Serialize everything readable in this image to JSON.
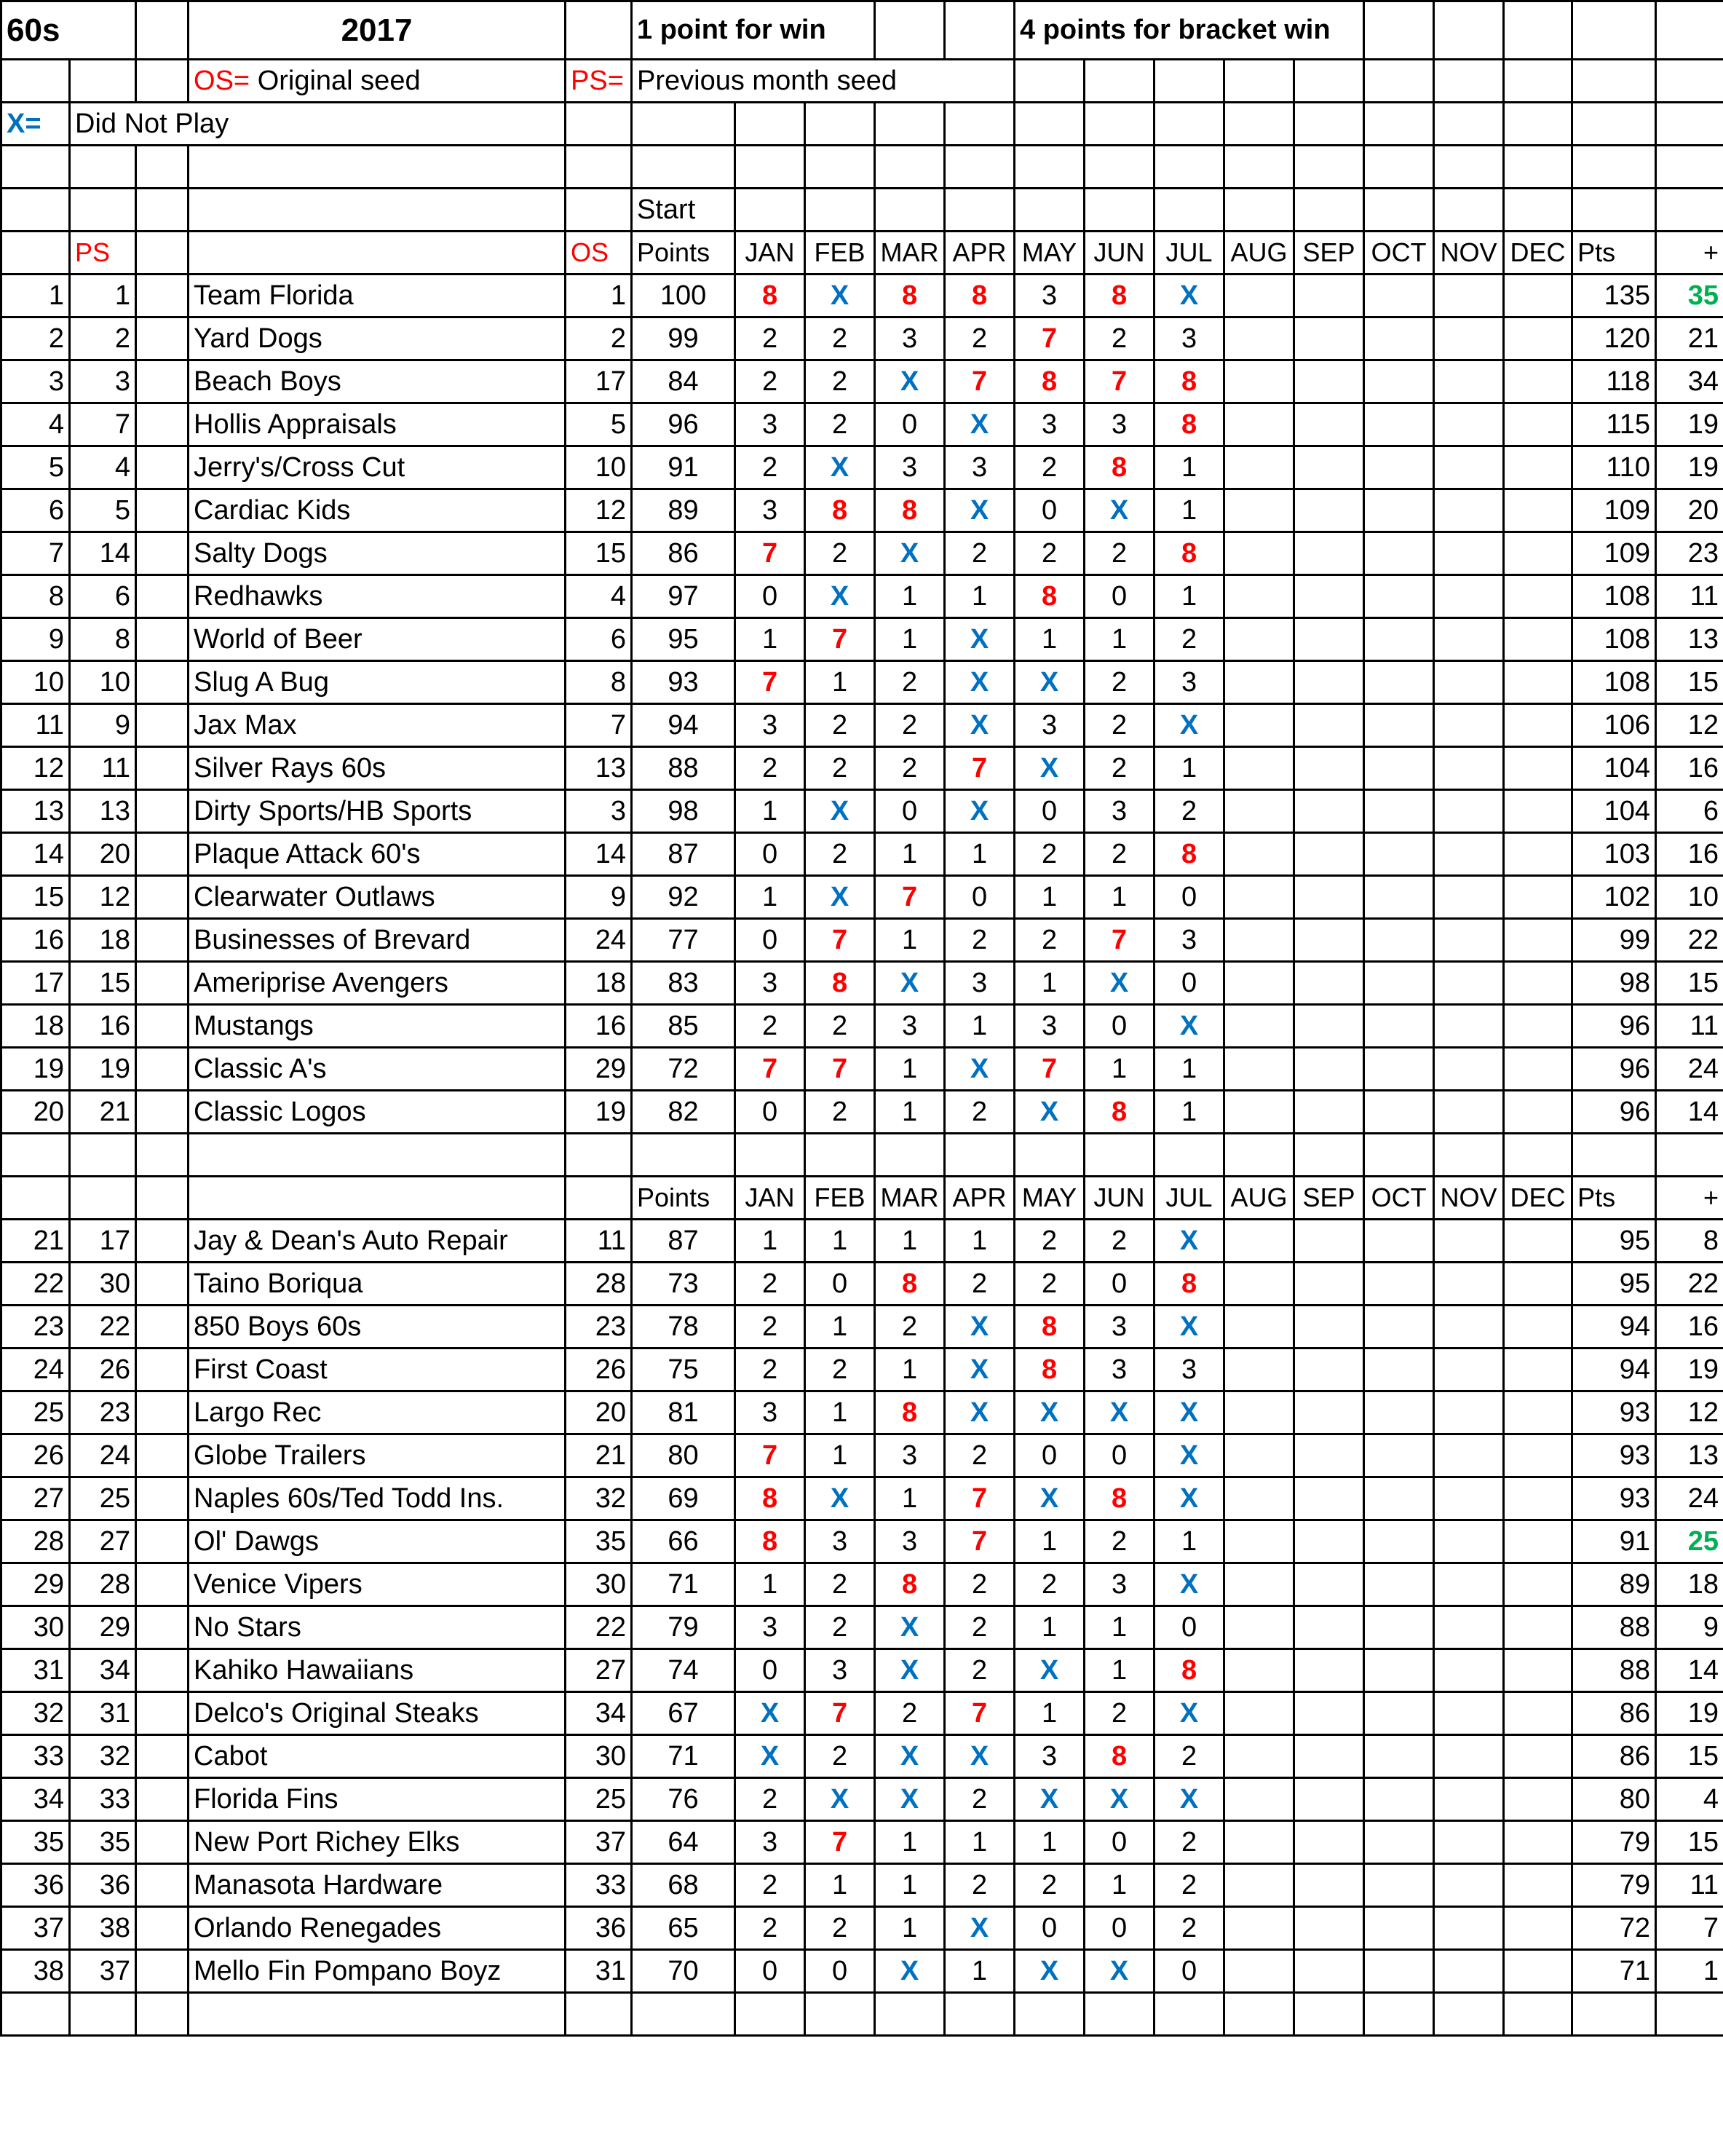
{
  "sheet": {
    "division": "60s",
    "year": "2017",
    "rule_win": "1 point for win",
    "rule_bracket": "4 points for bracket win",
    "os_key": "OS=",
    "os_desc": "Original seed",
    "ps_key": "PS=",
    "ps_desc": "Previous month seed",
    "x_key": "X=",
    "x_desc": "Did Not Play"
  },
  "colors": {
    "win": "#ff0000",
    "did_not_play": "#0070c0",
    "highlight": "#00b050",
    "legend_key_red": "#ff0000"
  },
  "header": {
    "start": "Start",
    "ps": "PS",
    "os": "OS",
    "points": "Points",
    "months": [
      "JAN",
      "FEB",
      "MAR",
      "APR",
      "MAY",
      "JUN",
      "JUL",
      "AUG",
      "SEP",
      "OCT",
      "NOV",
      "DEC"
    ],
    "pts": "Pts",
    "plus": "+"
  },
  "group1": [
    {
      "rank": "1",
      "ps": "1",
      "team": "Team Florida",
      "os": "1",
      "start": "100",
      "months": [
        "8",
        "X",
        "8",
        "8",
        "3",
        "8",
        "X"
      ],
      "pts": "135",
      "plus": "35",
      "plus_highlight": true
    },
    {
      "rank": "2",
      "ps": "2",
      "team": "Yard Dogs",
      "os": "2",
      "start": "99",
      "months": [
        "2",
        "2",
        "3",
        "2",
        "7",
        "2",
        "3"
      ],
      "pts": "120",
      "plus": "21"
    },
    {
      "rank": "3",
      "ps": "3",
      "team": "Beach Boys",
      "os": "17",
      "start": "84",
      "months": [
        "2",
        "2",
        "X",
        "7",
        "8",
        "7",
        "8"
      ],
      "pts": "118",
      "plus": "34"
    },
    {
      "rank": "4",
      "ps": "7",
      "team": "Hollis Appraisals",
      "os": "5",
      "start": "96",
      "months": [
        "3",
        "2",
        "0",
        "X",
        "3",
        "3",
        "8"
      ],
      "pts": "115",
      "plus": "19"
    },
    {
      "rank": "5",
      "ps": "4",
      "team": "Jerry's/Cross Cut",
      "os": "10",
      "start": "91",
      "months": [
        "2",
        "X",
        "3",
        "3",
        "2",
        "8",
        "1"
      ],
      "pts": "110",
      "plus": "19"
    },
    {
      "rank": "6",
      "ps": "5",
      "team": "Cardiac Kids",
      "os": "12",
      "start": "89",
      "months": [
        "3",
        "8",
        "8",
        "X",
        "0",
        "X",
        "1"
      ],
      "pts": "109",
      "plus": "20"
    },
    {
      "rank": "7",
      "ps": "14",
      "team": "Salty Dogs",
      "os": "15",
      "start": "86",
      "months": [
        "7",
        "2",
        "X",
        "2",
        "2",
        "2",
        "8"
      ],
      "pts": "109",
      "plus": "23"
    },
    {
      "rank": "8",
      "ps": "6",
      "team": "Redhawks",
      "os": "4",
      "start": "97",
      "months": [
        "0",
        "X",
        "1",
        "1",
        "8",
        "0",
        "1"
      ],
      "pts": "108",
      "plus": "11"
    },
    {
      "rank": "9",
      "ps": "8",
      "team": "World of Beer",
      "os": "6",
      "start": "95",
      "months": [
        "1",
        "7",
        "1",
        "X",
        "1",
        "1",
        "2"
      ],
      "pts": "108",
      "plus": "13"
    },
    {
      "rank": "10",
      "ps": "10",
      "team": "Slug A Bug",
      "os": "8",
      "start": "93",
      "months": [
        "7",
        "1",
        "2",
        "X",
        "X",
        "2",
        "3"
      ],
      "pts": "108",
      "plus": "15"
    },
    {
      "rank": "11",
      "ps": "9",
      "team": "Jax Max",
      "os": "7",
      "start": "94",
      "months": [
        "3",
        "2",
        "2",
        "X",
        "3",
        "2",
        "X"
      ],
      "pts": "106",
      "plus": "12"
    },
    {
      "rank": "12",
      "ps": "11",
      "team": "Silver Rays 60s",
      "os": "13",
      "start": "88",
      "months": [
        "2",
        "2",
        "2",
        "7",
        "X",
        "2",
        "1"
      ],
      "pts": "104",
      "plus": "16"
    },
    {
      "rank": "13",
      "ps": "13",
      "team": "Dirty Sports/HB Sports",
      "os": "3",
      "start": "98",
      "months": [
        "1",
        "X",
        "0",
        "X",
        "0",
        "3",
        "2"
      ],
      "pts": "104",
      "plus": "6"
    },
    {
      "rank": "14",
      "ps": "20",
      "team": "Plaque Attack 60's",
      "os": "14",
      "start": "87",
      "months": [
        "0",
        "2",
        "1",
        "1",
        "2",
        "2",
        "8"
      ],
      "pts": "103",
      "plus": "16"
    },
    {
      "rank": "15",
      "ps": "12",
      "team": "Clearwater Outlaws",
      "os": "9",
      "start": "92",
      "months": [
        "1",
        "X",
        "7",
        "0",
        "1",
        "1",
        "0"
      ],
      "pts": "102",
      "plus": "10"
    },
    {
      "rank": "16",
      "ps": "18",
      "team": "Businesses of Brevard",
      "os": "24",
      "start": "77",
      "months": [
        "0",
        "7",
        "1",
        "2",
        "2",
        "7",
        "3"
      ],
      "pts": "99",
      "plus": "22"
    },
    {
      "rank": "17",
      "ps": "15",
      "team": "Ameriprise Avengers",
      "os": "18",
      "start": "83",
      "months": [
        "3",
        "8",
        "X",
        "3",
        "1",
        "X",
        "0"
      ],
      "pts": "98",
      "plus": "15"
    },
    {
      "rank": "18",
      "ps": "16",
      "team": "Mustangs",
      "os": "16",
      "start": "85",
      "months": [
        "2",
        "2",
        "3",
        "1",
        "3",
        "0",
        "X"
      ],
      "pts": "96",
      "plus": "11"
    },
    {
      "rank": "19",
      "ps": "19",
      "team": "Classic A's",
      "os": "29",
      "start": "72",
      "months": [
        "7",
        "7",
        "1",
        "X",
        "7",
        "1",
        "1"
      ],
      "pts": "96",
      "plus": "24"
    },
    {
      "rank": "20",
      "ps": "21",
      "team": "Classic Logos",
      "os": "19",
      "start": "82",
      "months": [
        "0",
        "2",
        "1",
        "2",
        "X",
        "8",
        "1"
      ],
      "pts": "96",
      "plus": "14"
    }
  ],
  "group2": [
    {
      "rank": "21",
      "ps": "17",
      "team": "Jay & Dean's Auto Repair",
      "os": "11",
      "start": "87",
      "months": [
        "1",
        "1",
        "1",
        "1",
        "2",
        "2",
        "X"
      ],
      "pts": "95",
      "plus": "8"
    },
    {
      "rank": "22",
      "ps": "30",
      "team": "Taino Boriqua",
      "os": "28",
      "start": "73",
      "months": [
        "2",
        "0",
        "8",
        "2",
        "2",
        "0",
        "8"
      ],
      "pts": "95",
      "plus": "22"
    },
    {
      "rank": "23",
      "ps": "22",
      "team": "850 Boys 60s",
      "os": "23",
      "start": "78",
      "months": [
        "2",
        "1",
        "2",
        "X",
        "8",
        "3",
        "X"
      ],
      "pts": "94",
      "plus": "16"
    },
    {
      "rank": "24",
      "ps": "26",
      "team": "First Coast",
      "os": "26",
      "start": "75",
      "months": [
        "2",
        "2",
        "1",
        "X",
        "8",
        "3",
        "3"
      ],
      "pts": "94",
      "plus": "19"
    },
    {
      "rank": "25",
      "ps": "23",
      "team": "Largo Rec",
      "os": "20",
      "start": "81",
      "months": [
        "3",
        "1",
        "8",
        "X",
        "X",
        "X",
        "X"
      ],
      "pts": "93",
      "plus": "12"
    },
    {
      "rank": "26",
      "ps": "24",
      "team": "Globe Trailers",
      "os": "21",
      "start": "80",
      "months": [
        "7",
        "1",
        "3",
        "2",
        "0",
        "0",
        "X"
      ],
      "pts": "93",
      "plus": "13"
    },
    {
      "rank": "27",
      "ps": "25",
      "team": "Naples 60s/Ted Todd Ins.",
      "os": "32",
      "start": "69",
      "months": [
        "8",
        "X",
        "1",
        "7",
        "X",
        "8",
        "X"
      ],
      "pts": "93",
      "plus": "24"
    },
    {
      "rank": "28",
      "ps": "27",
      "team": "Ol' Dawgs",
      "os": "35",
      "start": "66",
      "months": [
        "8",
        "3",
        "3",
        "7",
        "1",
        "2",
        "1"
      ],
      "pts": "91",
      "plus": "25",
      "plus_highlight": true
    },
    {
      "rank": "29",
      "ps": "28",
      "team": "Venice Vipers",
      "os": "30",
      "start": "71",
      "months": [
        "1",
        "2",
        "8",
        "2",
        "2",
        "3",
        "X"
      ],
      "pts": "89",
      "plus": "18"
    },
    {
      "rank": "30",
      "ps": "29",
      "team": "No Stars",
      "os": "22",
      "start": "79",
      "months": [
        "3",
        "2",
        "X",
        "2",
        "1",
        "1",
        "0"
      ],
      "pts": "88",
      "plus": "9"
    },
    {
      "rank": "31",
      "ps": "34",
      "team": "Kahiko Hawaiians",
      "os": "27",
      "start": "74",
      "months": [
        "0",
        "3",
        "X",
        "2",
        "X",
        "1",
        "8"
      ],
      "pts": "88",
      "plus": "14"
    },
    {
      "rank": "32",
      "ps": "31",
      "team": "Delco's Original Steaks",
      "os": "34",
      "start": "67",
      "months": [
        "X",
        "7",
        "2",
        "7",
        "1",
        "2",
        "X"
      ],
      "pts": "86",
      "plus": "19"
    },
    {
      "rank": "33",
      "ps": "32",
      "team": "Cabot",
      "os": "30",
      "start": "71",
      "months": [
        "X",
        "2",
        "X",
        "X",
        "3",
        "8",
        "2"
      ],
      "pts": "86",
      "plus": "15"
    },
    {
      "rank": "34",
      "ps": "33",
      "team": "Florida Fins",
      "os": "25",
      "start": "76",
      "months": [
        "2",
        "X",
        "X",
        "2",
        "X",
        "X",
        "X"
      ],
      "pts": "80",
      "plus": "4"
    },
    {
      "rank": "35",
      "ps": "35",
      "team": "New Port Richey Elks",
      "os": "37",
      "start": "64",
      "months": [
        "3",
        "7",
        "1",
        "1",
        "1",
        "0",
        "2"
      ],
      "pts": "79",
      "plus": "15"
    },
    {
      "rank": "36",
      "ps": "36",
      "team": "Manasota Hardware",
      "os": "33",
      "start": "68",
      "months": [
        "2",
        "1",
        "1",
        "2",
        "2",
        "1",
        "2"
      ],
      "pts": "79",
      "plus": "11"
    },
    {
      "rank": "37",
      "ps": "38",
      "team": "Orlando Renegades",
      "os": "36",
      "start": "65",
      "months": [
        "2",
        "2",
        "1",
        "X",
        "0",
        "0",
        "2"
      ],
      "pts": "72",
      "plus": "7"
    },
    {
      "rank": "38",
      "ps": "37",
      "team": "Mello Fin Pompano Boyz",
      "os": "31",
      "start": "70",
      "months": [
        "0",
        "0",
        "X",
        "1",
        "X",
        "X",
        "0"
      ],
      "pts": "71",
      "plus": "1"
    }
  ]
}
